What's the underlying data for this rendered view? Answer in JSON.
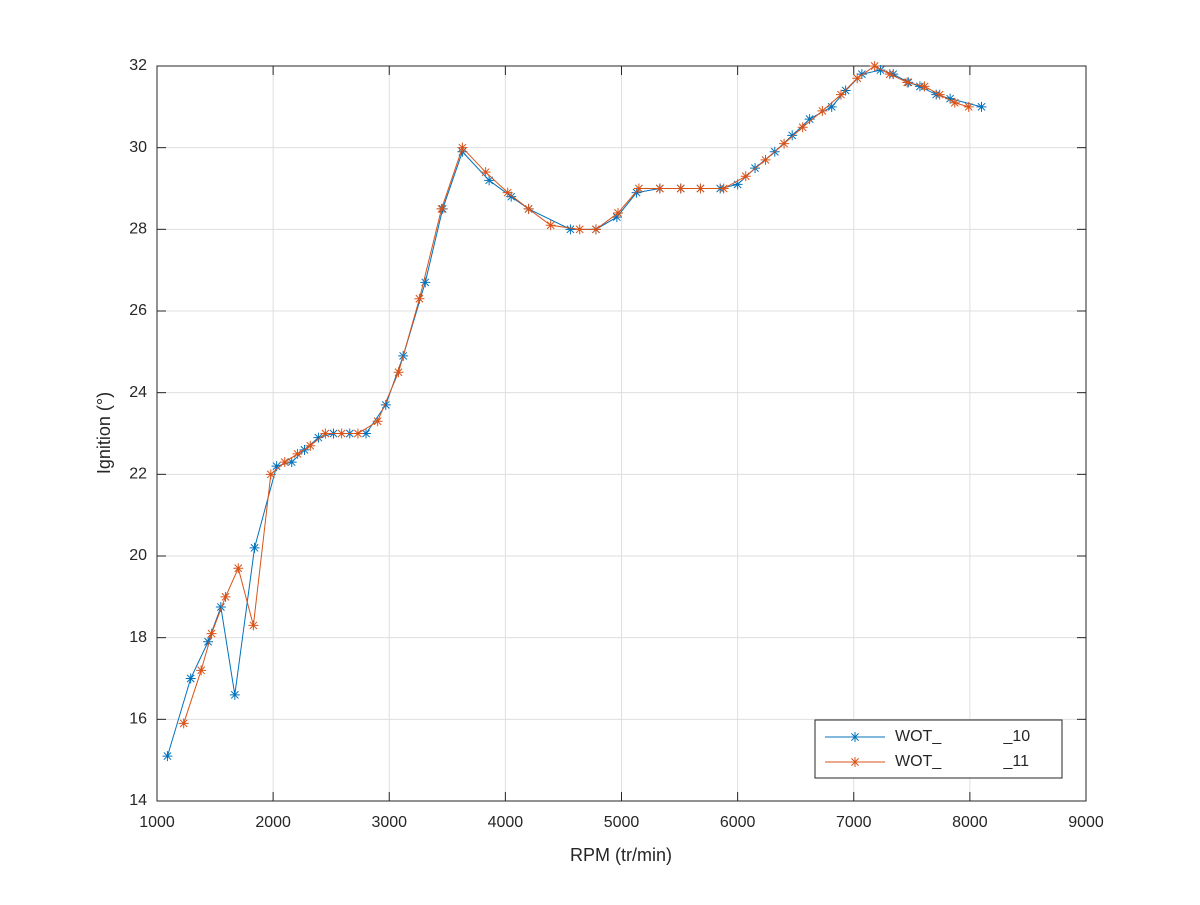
{
  "chart_data": {
    "type": "line",
    "xlabel": "RPM (tr/min)",
    "ylabel": "Ignition (°)",
    "xlim": [
      1000,
      9000
    ],
    "xticks": [
      1000,
      2000,
      3000,
      4000,
      5000,
      6000,
      7000,
      8000,
      9000
    ],
    "ylim": [
      14,
      32
    ],
    "yticks": [
      14,
      16,
      18,
      20,
      22,
      24,
      26,
      28,
      30,
      32
    ],
    "grid": true,
    "legend": "southeast",
    "marker": "*",
    "series": [
      {
        "name": "WOT_              _10",
        "color": "#0072bd",
        "x": [
          1090,
          1290,
          1440,
          1550,
          1670,
          1840,
          2030,
          2160,
          2270,
          2390,
          2520,
          2660,
          2800,
          2970,
          3120,
          3310,
          3460,
          3630,
          3860,
          4050,
          4200,
          4560,
          4780,
          4960,
          5130,
          5330,
          5510,
          5680,
          5850,
          6000,
          6150,
          6320,
          6470,
          6620,
          6810,
          6930,
          7070,
          7230,
          7340,
          7470,
          7570,
          7710,
          7830,
          8100
        ],
        "values": [
          15.1,
          17.0,
          17.9,
          18.75,
          16.6,
          20.2,
          22.2,
          22.3,
          22.6,
          22.9,
          23.0,
          23.0,
          23.0,
          23.7,
          24.9,
          26.7,
          28.5,
          29.9,
          29.2,
          28.8,
          28.5,
          28.0,
          28.0,
          28.3,
          28.9,
          29.0,
          29.0,
          29.0,
          29.0,
          29.1,
          29.5,
          29.9,
          30.3,
          30.7,
          31.0,
          31.4,
          31.8,
          31.9,
          31.8,
          31.6,
          31.5,
          31.3,
          31.2,
          31.0
        ]
      },
      {
        "name": "WOT_              _11",
        "color": "#d95319",
        "x": [
          1230,
          1380,
          1470,
          1590,
          1700,
          1830,
          1980,
          2100,
          2210,
          2320,
          2450,
          2590,
          2730,
          2900,
          3080,
          3260,
          3450,
          3630,
          3830,
          4020,
          4200,
          4390,
          4640,
          4780,
          4970,
          5150,
          5330,
          5510,
          5680,
          5880,
          6070,
          6240,
          6400,
          6560,
          6730,
          6890,
          7030,
          7180,
          7310,
          7460,
          7610,
          7740,
          7870,
          7990
        ],
        "values": [
          15.9,
          17.2,
          18.1,
          19.0,
          19.7,
          18.3,
          22.0,
          22.3,
          22.5,
          22.7,
          23.0,
          23.0,
          23.0,
          23.3,
          24.5,
          26.3,
          28.5,
          30.0,
          29.4,
          28.9,
          28.5,
          28.1,
          28.0,
          28.0,
          28.4,
          29.0,
          29.0,
          29.0,
          29.0,
          29.0,
          29.3,
          29.7,
          30.1,
          30.5,
          30.9,
          31.3,
          31.7,
          32.0,
          31.8,
          31.6,
          31.5,
          31.3,
          31.1,
          31.0
        ]
      }
    ]
  }
}
